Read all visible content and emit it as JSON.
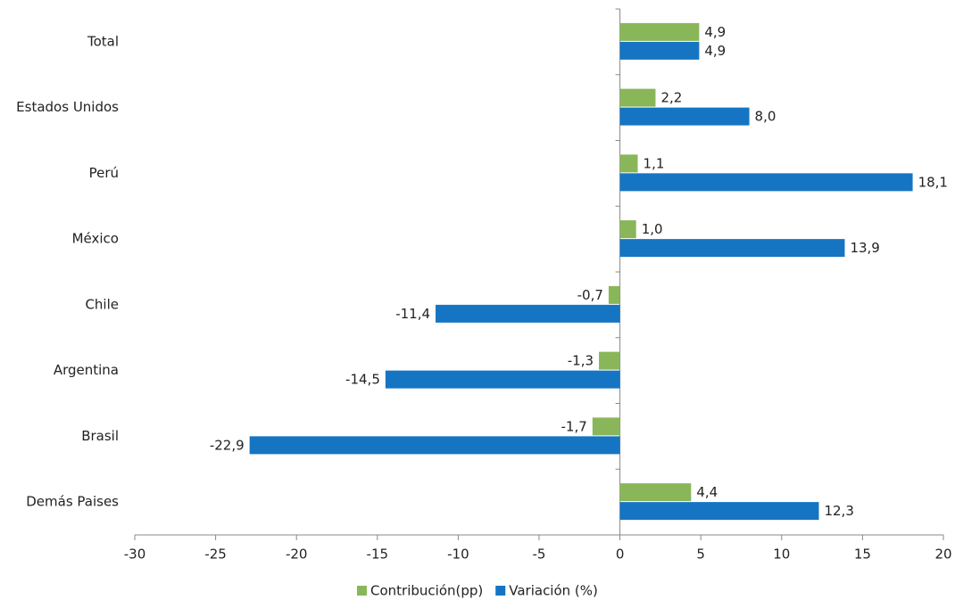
{
  "chart_data": {
    "type": "bar",
    "orientation": "horizontal",
    "categories": [
      "Total",
      "Estados Unidos",
      "Perú",
      "México",
      "Chile",
      "Argentina",
      "Brasil",
      "Demás Paises"
    ],
    "series": [
      {
        "name": "Contribución(pp)",
        "color": "#8ab65a",
        "values": [
          4.9,
          2.2,
          1.1,
          1.0,
          -0.7,
          -1.3,
          -1.7,
          4.4
        ],
        "value_labels": [
          "4,9",
          "2,2",
          "1,1",
          "1,0",
          "-0,7",
          "-1,3",
          "-1,7",
          "4,4"
        ]
      },
      {
        "name": "Variación (%)",
        "color": "#1575c2",
        "values": [
          4.9,
          8.0,
          18.1,
          13.9,
          -11.4,
          -14.5,
          -22.9,
          12.3
        ],
        "value_labels": [
          "4,9",
          "8,0",
          "18,1",
          "13,9",
          "-11,4",
          "-14,5",
          "-22,9",
          "12,3"
        ]
      }
    ],
    "xlim": [
      -30,
      20
    ],
    "xticks": [
      -30,
      -25,
      -20,
      -15,
      -10,
      -5,
      0,
      5,
      10,
      15,
      20
    ],
    "legend": "bottom"
  }
}
